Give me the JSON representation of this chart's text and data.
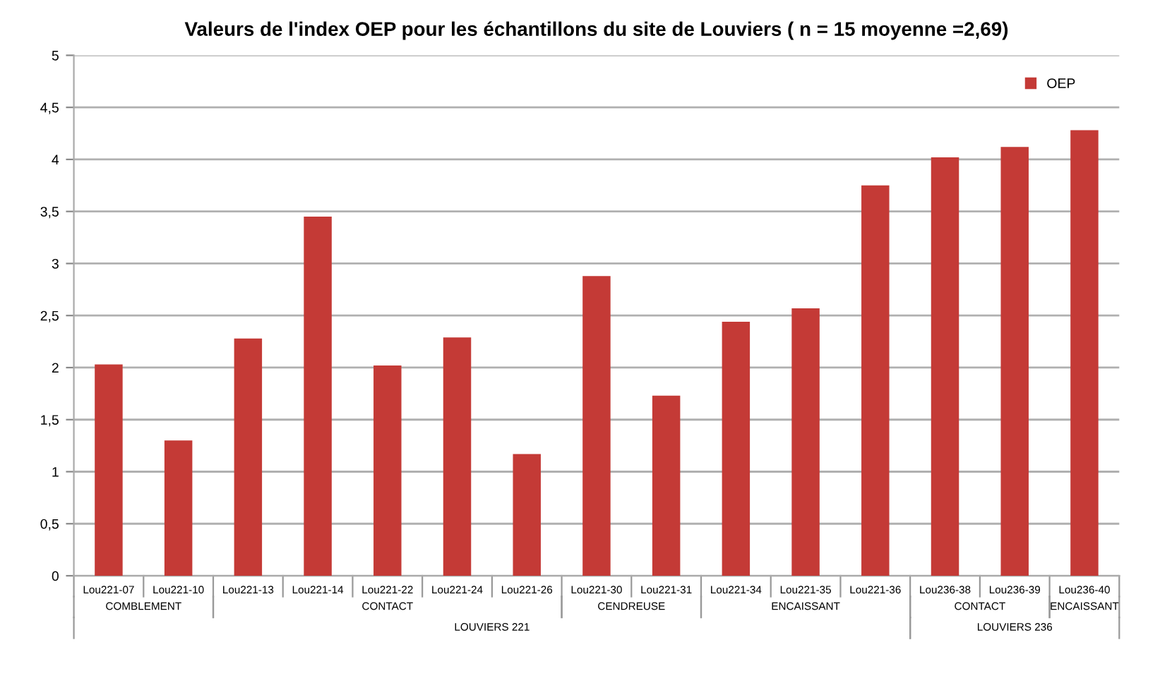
{
  "chart_data": {
    "type": "bar",
    "title": "Valeurs de l'index OEP pour les échantillons du site de Louviers ( n = 15 moyenne =2,69)",
    "categories": [
      "Lou221-07",
      "Lou221-10",
      "Lou221-13",
      "Lou221-14",
      "Lou221-22",
      "Lou221-24",
      "Lou221-26",
      "Lou221-30",
      "Lou221-31",
      "Lou221-34",
      "Lou221-35",
      "Lou221-36",
      "Lou236-38",
      "Lou236-39",
      "Lou236-40"
    ],
    "series": [
      {
        "name": "OEP",
        "color": "#c43a36",
        "values": [
          2.03,
          1.3,
          2.28,
          3.45,
          2.02,
          2.29,
          1.17,
          2.88,
          1.73,
          2.44,
          2.57,
          3.75,
          4.02,
          4.12,
          4.28
        ]
      }
    ],
    "ylim": [
      0,
      5
    ],
    "yticks": [
      0,
      {
        "value": 0.5,
        "label": "0,5"
      },
      1,
      {
        "value": 1.5,
        "label": "1,5"
      },
      2,
      {
        "value": 2.5,
        "label": "2,5"
      },
      3,
      {
        "value": 3.5,
        "label": "3,5"
      },
      4,
      {
        "value": 4.5,
        "label": "4,5"
      },
      5
    ],
    "grid": "y",
    "legend": "top right",
    "annotations": [
      "COMBLEMENT",
      "CONTACT",
      "CENDREUSE",
      "ENCAISSANT",
      "CONTACT",
      "ENCAISSANT",
      "LOUVIERS 221",
      "LOUVIERS 236"
    ]
  }
}
